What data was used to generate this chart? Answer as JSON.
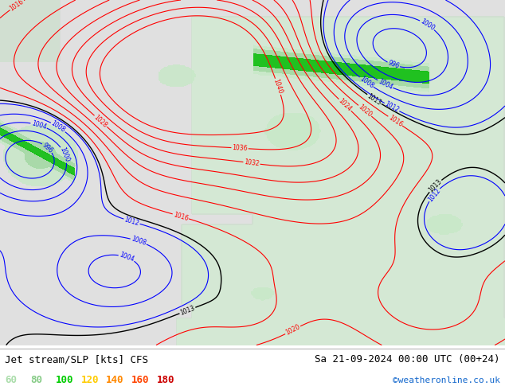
{
  "title_left": "Jet stream/SLP [kts] CFS",
  "title_right": "Sa 21-09-2024 00:00 UTC (00+24)",
  "credit": "©weatheronline.co.uk",
  "legend_values": [
    60,
    80,
    100,
    120,
    140,
    160,
    180
  ],
  "legend_colors": [
    "#aaddaa",
    "#88cc88",
    "#00cc00",
    "#ffcc00",
    "#ff8800",
    "#ff4400",
    "#cc0000"
  ],
  "bottom_bar_color": "#ffffff",
  "map_ocean_color": "#e8e8e8",
  "map_land_color": "#d8ecd8",
  "font_size_title": 9,
  "font_size_legend": 9,
  "font_size_credit": 8,
  "fig_width": 6.34,
  "fig_height": 4.9,
  "dpi": 100
}
